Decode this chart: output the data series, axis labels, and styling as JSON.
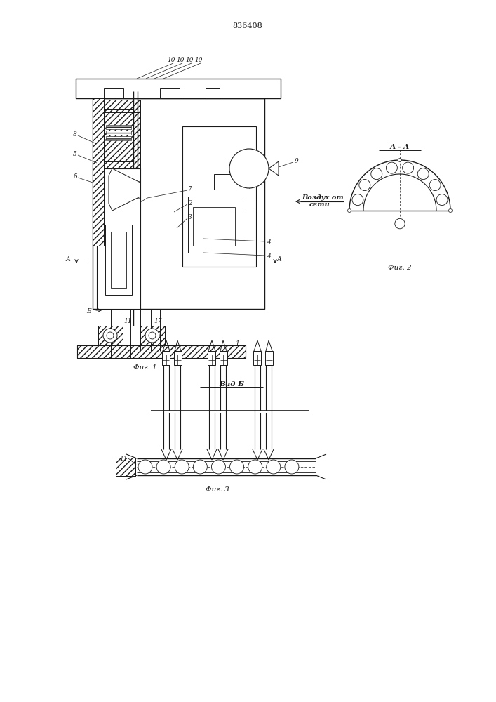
{
  "patent_number": "836408",
  "bg_color": "#ffffff",
  "line_color": "#1a1a1a",
  "fig1_caption": "Фиг. 1",
  "fig2_caption": "Фиг. 2",
  "fig3_caption": "Фиг. 3",
  "label_vidb": "Вид Б",
  "label_aa": "А - А",
  "label_vozduh": "Воздух от",
  "label_seti": "сети"
}
